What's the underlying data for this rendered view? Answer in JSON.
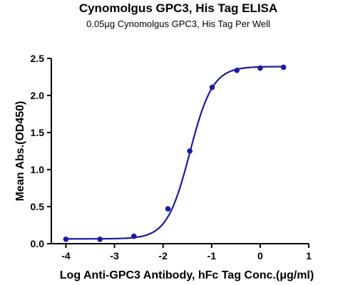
{
  "chart_data": {
    "type": "scatter",
    "title": "Cynomolgus GPC3, His Tag ELISA",
    "subtitle": "0.05μg Cynomolgus GPC3, His Tag Per Well",
    "xlabel": "Log Anti-GPC3 Antibody, hFc Tag Conc.(μg/ml)",
    "ylabel": "Mean Abs.(OD450)",
    "xlim": [
      -4.3,
      1
    ],
    "ylim": [
      0,
      2.5
    ],
    "x_ticks": [
      -4,
      -3,
      -2,
      -1,
      0,
      1
    ],
    "y_ticks": [
      0.0,
      0.5,
      1.0,
      1.5,
      2.0,
      2.5
    ],
    "x_tick_labels": [
      "-4",
      "-3",
      "-2",
      "-1",
      "0",
      "1"
    ],
    "y_tick_labels": [
      "0.0",
      "0.5",
      "1.0",
      "1.5",
      "2.0",
      "2.5"
    ],
    "grid": false,
    "series": [
      {
        "color": "#1a1aa6",
        "x": [
          -4.0,
          -3.3,
          -2.6,
          -1.9,
          -1.45,
          -0.99,
          -0.48,
          0.0,
          0.48
        ],
        "y": [
          0.06,
          0.06,
          0.1,
          0.47,
          1.25,
          2.11,
          2.34,
          2.37,
          2.38
        ]
      }
    ],
    "fit": {
      "type": "4PL",
      "color": "#1a1aa6",
      "bottom": 0.065,
      "top": 2.39,
      "logEC50": -1.45,
      "hill": 1.85
    }
  }
}
